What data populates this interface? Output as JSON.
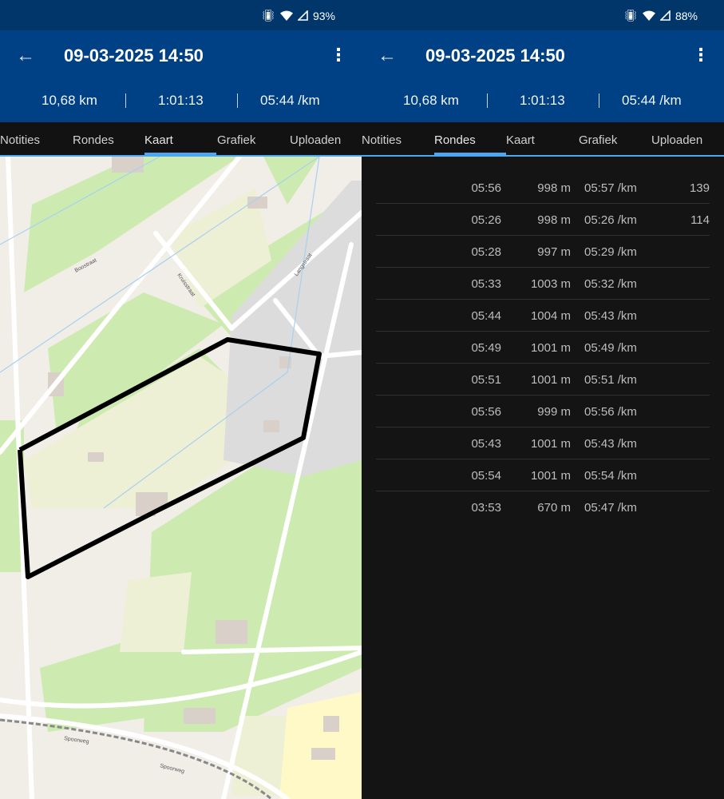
{
  "screens": [
    {
      "status": {
        "battery": "93%",
        "icons": [
          "vibrate-icon",
          "wifi-icon",
          "signal-icon"
        ]
      },
      "header": {
        "title": "09-03-2025 14:50",
        "distance": "10,68 km",
        "duration": "1:01:13",
        "pace": "05:44 /km"
      },
      "tabs": [
        "Notities",
        "Rondes",
        "Kaart",
        "Grafiek",
        "Uploaden"
      ],
      "active_tab": "Kaart",
      "map": {
        "labels": [
          "Boostraat",
          "Kruisstraat",
          "Langstraat",
          "Spoorweg",
          "Spoorweg"
        ],
        "route_color": "#000000"
      }
    },
    {
      "status": {
        "battery": "88%",
        "icons": [
          "vibrate-icon",
          "wifi-icon",
          "signal-icon"
        ]
      },
      "header": {
        "title": "09-03-2025 14:50",
        "distance": "10,68 km",
        "duration": "1:01:13",
        "pace": "05:44 /km"
      },
      "tabs": [
        "Notities",
        "Rondes",
        "Kaart",
        "Grafiek",
        "Uploaden"
      ],
      "active_tab": "Rondes",
      "laps": [
        {
          "time": "05:56",
          "distance": "998 m",
          "pace": "05:57 /km",
          "hr": "139"
        },
        {
          "time": "05:26",
          "distance": "998 m",
          "pace": "05:26 /km",
          "hr": "114"
        },
        {
          "time": "05:28",
          "distance": "997 m",
          "pace": "05:29 /km",
          "hr": ""
        },
        {
          "time": "05:33",
          "distance": "1003 m",
          "pace": "05:32 /km",
          "hr": ""
        },
        {
          "time": "05:44",
          "distance": "1004 m",
          "pace": "05:43 /km",
          "hr": ""
        },
        {
          "time": "05:49",
          "distance": "1001 m",
          "pace": "05:49 /km",
          "hr": ""
        },
        {
          "time": "05:51",
          "distance": "1001 m",
          "pace": "05:51 /km",
          "hr": ""
        },
        {
          "time": "05:56",
          "distance": "999 m",
          "pace": "05:56 /km",
          "hr": ""
        },
        {
          "time": "05:43",
          "distance": "1001 m",
          "pace": "05:43 /km",
          "hr": ""
        },
        {
          "time": "05:54",
          "distance": "1001 m",
          "pace": "05:54 /km",
          "hr": ""
        },
        {
          "time": "03:53",
          "distance": "670 m",
          "pace": "05:47 /km",
          "hr": ""
        }
      ]
    }
  ],
  "colors": {
    "status_bar": "#01366a",
    "header": "#004185",
    "tab_indicator": "#4da6f0",
    "background": "#141414"
  }
}
